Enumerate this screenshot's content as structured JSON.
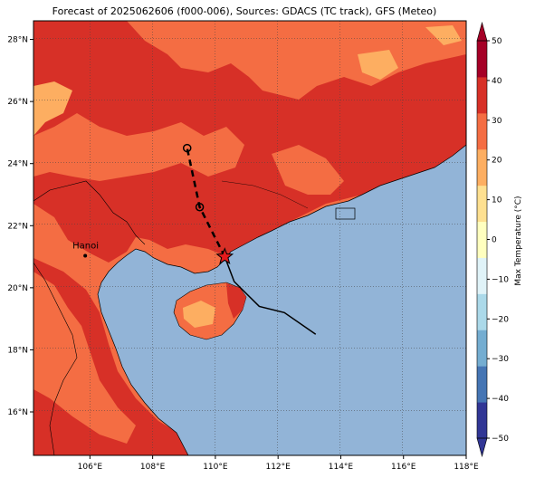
{
  "title": "Forecast of 2025062606 (f000-006), Sources: GDACS (TC track), GFS (Meteo)",
  "map": {
    "lon_labels": [
      "106°E",
      "108°E",
      "110°E",
      "112°E",
      "114°E",
      "116°E",
      "118°E"
    ],
    "lat_labels": [
      "16°N",
      "18°N",
      "20°N",
      "22°N",
      "24°N",
      "26°N",
      "28°N"
    ],
    "city": {
      "name": "Hanoi",
      "lon": 105.85,
      "lat": 21.03
    },
    "track_past": [
      {
        "lon": 110.3,
        "lat": 21.0
      },
      {
        "lon": 110.6,
        "lat": 20.2
      },
      {
        "lon": 111.4,
        "lat": 19.4
      },
      {
        "lon": 112.2,
        "lat": 19.2
      },
      {
        "lon": 113.2,
        "lat": 18.5
      }
    ],
    "track_forecast": [
      {
        "lon": 110.3,
        "lat": 21.0
      },
      {
        "lon": 109.5,
        "lat": 22.6
      },
      {
        "lon": 109.1,
        "lat": 24.5
      }
    ],
    "current_position": {
      "lon": 110.3,
      "lat": 21.0
    }
  },
  "colorbar": {
    "label": "Max Temperature (°C)",
    "ticks": [
      "50",
      "40",
      "30",
      "20",
      "10",
      "0",
      "−10",
      "−20",
      "−30",
      "−40",
      "−50"
    ],
    "colors": [
      "#313695",
      "#4575b4",
      "#74add1",
      "#abd9e9",
      "#e0f3f8",
      "#ffffbf",
      "#fee090",
      "#fdae61",
      "#f46d43",
      "#d73027",
      "#a50026"
    ]
  },
  "colors": {
    "sea": "#92b4d7",
    "land_hot": "#d73027",
    "land_warm": "#f46d43",
    "land_mild": "#fdae61"
  }
}
